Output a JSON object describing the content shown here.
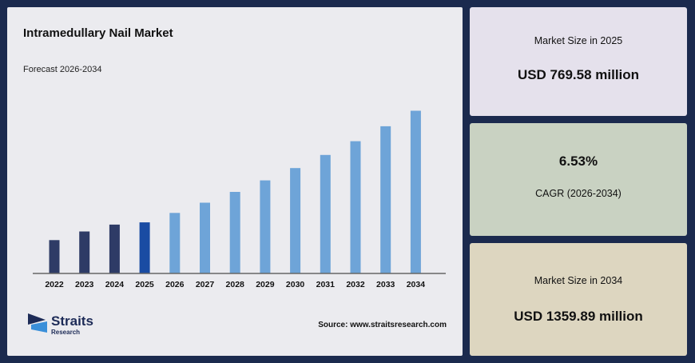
{
  "chart_data": {
    "type": "bar",
    "title": "Intramedullary Nail Market",
    "subtitle": "Forecast 2026-2034",
    "categories": [
      "2022",
      "2023",
      "2024",
      "2025",
      "2026",
      "2027",
      "2028",
      "2029",
      "2030",
      "2031",
      "2032",
      "2033",
      "2034"
    ],
    "values": [
      676,
      722,
      758,
      770,
      820,
      874,
      931,
      992,
      1057,
      1126,
      1199,
      1278,
      1360
    ],
    "ylim": [
      500,
      1400
    ],
    "grid": false,
    "legend": "none",
    "colors": {
      "historical": "#2e3b66",
      "base_year": "#1a4ca3",
      "forecast": "#6ea4d8"
    }
  },
  "source": "Source: www.straitsresearch.com",
  "brand": {
    "name": "Straits",
    "sub": "Research",
    "colors": [
      "#1d2b57",
      "#3a8fd9"
    ]
  },
  "stats": [
    {
      "label": "Market Size in 2025",
      "value": "USD 769.58 million",
      "background": "#e5e1ec"
    },
    {
      "label": "CAGR (2026-2034)",
      "value": "6.53%",
      "background": "#c9d2c2"
    },
    {
      "label": "Market Size in 2034",
      "value": "USD 1359.89 million",
      "background": "#ddd6c0"
    }
  ]
}
